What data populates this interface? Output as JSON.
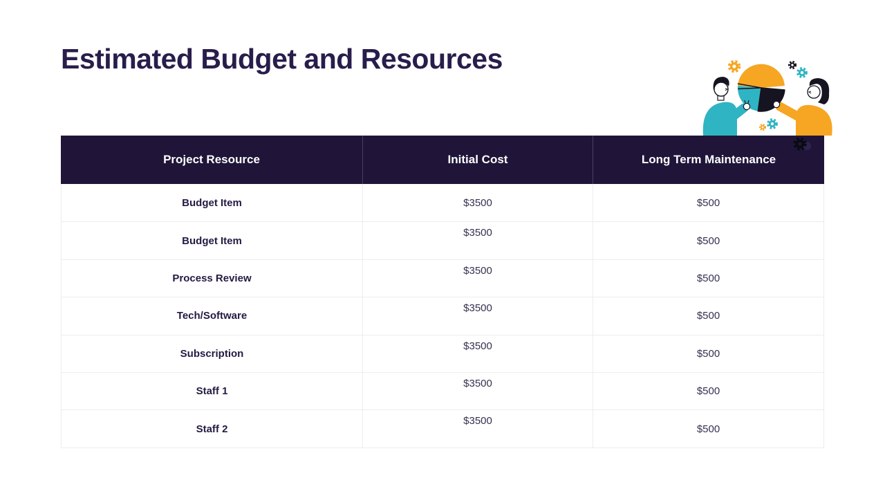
{
  "slide": {
    "title": "Estimated Budget and Resources"
  },
  "table": {
    "columns": [
      "Project Resource",
      "Initial Cost",
      "Long Term Maintenance"
    ],
    "rows": [
      {
        "resource": "Budget Item",
        "initial_cost": "$3500",
        "maintenance": "$500"
      },
      {
        "resource": "Budget Item",
        "initial_cost": "$3500",
        "maintenance": "$500"
      },
      {
        "resource": "Process Review",
        "initial_cost": "$3500",
        "maintenance": "$500"
      },
      {
        "resource": "Tech/Software",
        "initial_cost": "$3500",
        "maintenance": "$500"
      },
      {
        "resource": "Subscription",
        "initial_cost": "$3500",
        "maintenance": "$500"
      },
      {
        "resource": "Staff 1",
        "initial_cost": "$3500",
        "maintenance": "$500"
      },
      {
        "resource": "Staff 2",
        "initial_cost": "$3500",
        "maintenance": "$500"
      }
    ]
  },
  "illustration": {
    "name": "two-people-discussing-pie-chart",
    "icons": [
      "gear-icon",
      "pie-chart-icon",
      "person-illustration"
    ],
    "pie_slices": [
      "orange-top",
      "teal-bottom-left",
      "black-bottom-right"
    ]
  },
  "colors": {
    "navy": "#201539",
    "title": "#281D4B",
    "teal": "#2FB4C4",
    "orange": "#F6A623",
    "ink": "#241A42",
    "cost": "#363050",
    "grid": "#ededf1",
    "hdr_sep": "#474060"
  }
}
